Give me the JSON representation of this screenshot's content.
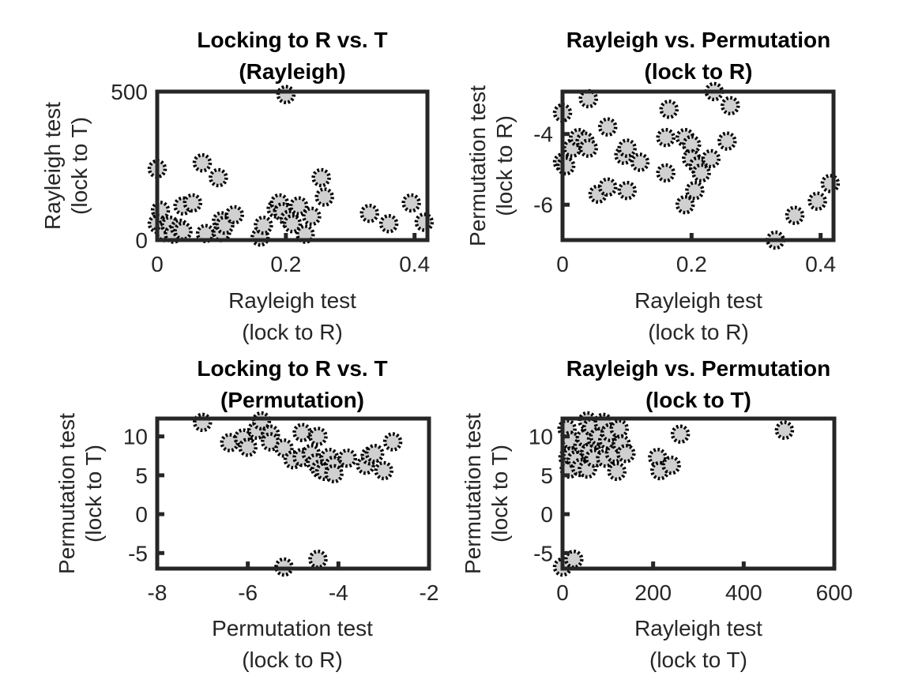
{
  "chart_data": [
    {
      "type": "scatter",
      "title": [
        "Locking to R vs. T",
        "(Rayleigh)"
      ],
      "xlabel": [
        "Rayleigh test",
        "(lock to R)"
      ],
      "ylabel": [
        "Rayleigh test",
        "(lock to T)"
      ],
      "xlim": [
        0,
        0.42
      ],
      "ylim": [
        0,
        500
      ],
      "xticks": [
        0,
        0.2,
        0.4
      ],
      "xticklabels": [
        "0",
        "0.2",
        "0.4"
      ],
      "yticks": [
        0,
        500
      ],
      "yticklabels": [
        "0",
        "500"
      ],
      "grid": false,
      "points": [
        {
          "x": 0.0,
          "y": 240
        },
        {
          "x": 0.005,
          "y": 100
        },
        {
          "x": 0.0,
          "y": 55
        },
        {
          "x": 0.01,
          "y": 35
        },
        {
          "x": 0.012,
          "y": 25
        },
        {
          "x": 0.02,
          "y": 50
        },
        {
          "x": 0.025,
          "y": 20
        },
        {
          "x": 0.035,
          "y": 40
        },
        {
          "x": 0.04,
          "y": 30
        },
        {
          "x": 0.04,
          "y": 115
        },
        {
          "x": 0.055,
          "y": 125
        },
        {
          "x": 0.07,
          "y": 260
        },
        {
          "x": 0.075,
          "y": 22
        },
        {
          "x": 0.095,
          "y": 210
        },
        {
          "x": 0.1,
          "y": 65
        },
        {
          "x": 0.1,
          "y": 25
        },
        {
          "x": 0.105,
          "y": 50
        },
        {
          "x": 0.12,
          "y": 85
        },
        {
          "x": 0.16,
          "y": 10
        },
        {
          "x": 0.165,
          "y": 50
        },
        {
          "x": 0.185,
          "y": 105
        },
        {
          "x": 0.19,
          "y": 125
        },
        {
          "x": 0.195,
          "y": 95
        },
        {
          "x": 0.2,
          "y": 490
        },
        {
          "x": 0.205,
          "y": 70
        },
        {
          "x": 0.21,
          "y": 55
        },
        {
          "x": 0.22,
          "y": 115
        },
        {
          "x": 0.23,
          "y": 20
        },
        {
          "x": 0.24,
          "y": 80
        },
        {
          "x": 0.255,
          "y": 210
        },
        {
          "x": 0.26,
          "y": 145
        },
        {
          "x": 0.33,
          "y": 90
        },
        {
          "x": 0.36,
          "y": 55
        },
        {
          "x": 0.395,
          "y": 125
        },
        {
          "x": 0.415,
          "y": 60
        }
      ]
    },
    {
      "type": "scatter",
      "title": [
        "Rayleigh vs. Permutation",
        "(lock to R)"
      ],
      "xlabel": [
        "Rayleigh test",
        "(lock to R)"
      ],
      "ylabel": [
        "Permutation test",
        "(lock to R)"
      ],
      "xlim": [
        0,
        0.42
      ],
      "ylim": [
        -7.0,
        -2.8
      ],
      "xticks": [
        0,
        0.2,
        0.4
      ],
      "xticklabels": [
        "0",
        "0.2",
        "0.4"
      ],
      "yticks": [
        -6,
        -4
      ],
      "yticklabels": [
        "-6",
        "-4"
      ],
      "grid": false,
      "points": [
        {
          "x": 0.0,
          "y": -3.4
        },
        {
          "x": 0.0,
          "y": -4.8
        },
        {
          "x": 0.005,
          "y": -4.9
        },
        {
          "x": 0.015,
          "y": -4.4
        },
        {
          "x": 0.025,
          "y": -4.1
        },
        {
          "x": 0.035,
          "y": -4.2
        },
        {
          "x": 0.04,
          "y": -4.4
        },
        {
          "x": 0.04,
          "y": -3.0
        },
        {
          "x": 0.055,
          "y": -5.7
        },
        {
          "x": 0.07,
          "y": -5.5
        },
        {
          "x": 0.07,
          "y": -3.8
        },
        {
          "x": 0.095,
          "y": -4.6
        },
        {
          "x": 0.1,
          "y": -4.4
        },
        {
          "x": 0.1,
          "y": -5.6
        },
        {
          "x": 0.12,
          "y": -4.8
        },
        {
          "x": 0.16,
          "y": -4.1
        },
        {
          "x": 0.16,
          "y": -5.1
        },
        {
          "x": 0.165,
          "y": -3.3
        },
        {
          "x": 0.19,
          "y": -6.0
        },
        {
          "x": 0.19,
          "y": -4.1
        },
        {
          "x": 0.2,
          "y": -4.3
        },
        {
          "x": 0.2,
          "y": -4.7
        },
        {
          "x": 0.205,
          "y": -5.6
        },
        {
          "x": 0.21,
          "y": -4.9
        },
        {
          "x": 0.215,
          "y": -5.1
        },
        {
          "x": 0.23,
          "y": -4.7
        },
        {
          "x": 0.235,
          "y": -2.8
        },
        {
          "x": 0.255,
          "y": -4.2
        },
        {
          "x": 0.26,
          "y": -3.2
        },
        {
          "x": 0.33,
          "y": -7.0
        },
        {
          "x": 0.36,
          "y": -6.3
        },
        {
          "x": 0.395,
          "y": -5.9
        },
        {
          "x": 0.415,
          "y": -5.4
        }
      ]
    },
    {
      "type": "scatter",
      "title": [
        "Locking to R vs. T",
        "(Permutation)"
      ],
      "xlabel": [
        "Permutation test",
        "(lock to R)"
      ],
      "ylabel": [
        "Permutation test",
        "(lock to T)"
      ],
      "xlim": [
        -8,
        -2
      ],
      "ylim": [
        -7,
        12.3
      ],
      "xticks": [
        -8,
        -6,
        -4,
        -2
      ],
      "xticklabels": [
        "-8",
        "-6",
        "-4",
        "-2"
      ],
      "yticks": [
        -5,
        0,
        5,
        10
      ],
      "yticklabels": [
        "-5",
        "0",
        "5",
        "10"
      ],
      "grid": false,
      "points": [
        {
          "x": -7.0,
          "y": 11.8
        },
        {
          "x": -6.4,
          "y": 9.2
        },
        {
          "x": -6.1,
          "y": 9.8
        },
        {
          "x": -6.0,
          "y": 8.6
        },
        {
          "x": -5.8,
          "y": 10.8
        },
        {
          "x": -5.7,
          "y": 12.0
        },
        {
          "x": -5.5,
          "y": 10.3
        },
        {
          "x": -5.5,
          "y": 9.3
        },
        {
          "x": -5.2,
          "y": 8.5
        },
        {
          "x": -5.2,
          "y": -6.8
        },
        {
          "x": -5.0,
          "y": 7.0
        },
        {
          "x": -4.8,
          "y": 10.5
        },
        {
          "x": -4.8,
          "y": 7.3
        },
        {
          "x": -4.6,
          "y": 7.8
        },
        {
          "x": -4.5,
          "y": 6.6
        },
        {
          "x": -4.45,
          "y": 10.0
        },
        {
          "x": -4.45,
          "y": -5.8
        },
        {
          "x": -4.4,
          "y": 5.8
        },
        {
          "x": -4.3,
          "y": 5.5
        },
        {
          "x": -4.2,
          "y": 7.3
        },
        {
          "x": -4.1,
          "y": 6.3
        },
        {
          "x": -4.1,
          "y": 5.2
        },
        {
          "x": -3.8,
          "y": 7.2
        },
        {
          "x": -3.4,
          "y": 6.3
        },
        {
          "x": -3.3,
          "y": 7.5
        },
        {
          "x": -3.2,
          "y": 7.8
        },
        {
          "x": -3.0,
          "y": 5.6
        },
        {
          "x": -2.8,
          "y": 9.3
        }
      ]
    },
    {
      "type": "scatter",
      "title": [
        "Rayleigh vs. Permutation",
        "(lock to T)"
      ],
      "xlabel": [
        "Rayleigh test",
        "(lock to T)"
      ],
      "ylabel": [
        "Permutation test",
        "(lock to T)"
      ],
      "xlim": [
        0,
        600
      ],
      "ylim": [
        -7,
        12.3
      ],
      "xticks": [
        0,
        200,
        400,
        600
      ],
      "xticklabels": [
        "0",
        "200",
        "400",
        "600"
      ],
      "yticks": [
        -5,
        0,
        5,
        10
      ],
      "yticklabels": [
        "-5",
        "0",
        "5",
        "10"
      ],
      "grid": false,
      "points": [
        {
          "x": 0,
          "y": -6.8
        },
        {
          "x": 10,
          "y": 11.0
        },
        {
          "x": 12,
          "y": 7.3
        },
        {
          "x": 15,
          "y": 5.8
        },
        {
          "x": 18,
          "y": 9.5
        },
        {
          "x": 20,
          "y": 7.5
        },
        {
          "x": 25,
          "y": -5.8
        },
        {
          "x": 30,
          "y": 7.0
        },
        {
          "x": 40,
          "y": 6.0
        },
        {
          "x": 45,
          "y": 8.8
        },
        {
          "x": 50,
          "y": 9.8
        },
        {
          "x": 55,
          "y": 12.0
        },
        {
          "x": 55,
          "y": 5.8
        },
        {
          "x": 60,
          "y": 8.0
        },
        {
          "x": 65,
          "y": 11.2
        },
        {
          "x": 70,
          "y": 7.2
        },
        {
          "x": 75,
          "y": 9.6
        },
        {
          "x": 80,
          "y": 10.0
        },
        {
          "x": 90,
          "y": 11.8
        },
        {
          "x": 95,
          "y": 7.2
        },
        {
          "x": 100,
          "y": 9.5
        },
        {
          "x": 105,
          "y": 10.5
        },
        {
          "x": 115,
          "y": 7.8
        },
        {
          "x": 120,
          "y": 5.5
        },
        {
          "x": 125,
          "y": 11.0
        },
        {
          "x": 130,
          "y": 9.0
        },
        {
          "x": 140,
          "y": 7.8
        },
        {
          "x": 210,
          "y": 7.3
        },
        {
          "x": 215,
          "y": 5.6
        },
        {
          "x": 240,
          "y": 6.3
        },
        {
          "x": 260,
          "y": 10.3
        },
        {
          "x": 490,
          "y": 10.8
        }
      ]
    }
  ]
}
